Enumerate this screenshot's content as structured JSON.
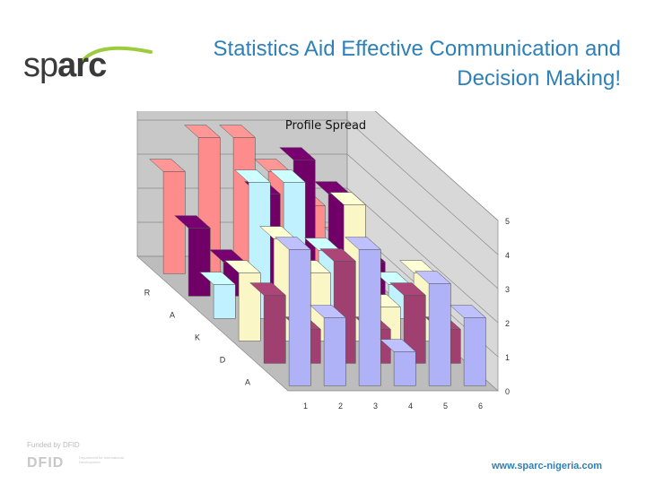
{
  "logo": {
    "part1": "sp",
    "part2": "arc"
  },
  "headline": {
    "line1": "Statistics Aid Effective Communication and",
    "line2": "Decision Making!"
  },
  "chart_data": {
    "type": "bar",
    "title": "Profile Spread",
    "xlabel": "",
    "ylabel": "",
    "categories": [
      "1",
      "2",
      "3",
      "4",
      "5",
      "6"
    ],
    "ylim": [
      0,
      5
    ],
    "yticks": [
      "0",
      "1",
      "2",
      "3",
      "4",
      "5"
    ],
    "grid": true,
    "legend": "none",
    "series": [
      {
        "label": "A",
        "color": "#b0b2f8",
        "values": [
          4,
          2,
          4,
          1,
          3,
          2
        ]
      },
      {
        "label": "D",
        "color": "#a04070",
        "values": [
          2,
          1,
          3,
          1,
          2,
          1
        ]
      },
      {
        "label": "K",
        "color": "#fbf6c6",
        "values": [
          2,
          3,
          2,
          4,
          1,
          2
        ]
      },
      {
        "label": "A",
        "color": "#bff1ff",
        "values": [
          1,
          4,
          4,
          2,
          1,
          1
        ]
      },
      {
        "label": "R",
        "color": "#700068",
        "values": [
          2,
          1,
          3,
          4,
          3,
          1
        ]
      },
      {
        "label": "",
        "color": "#ff8c8c",
        "values": [
          3,
          4,
          4,
          3,
          2,
          1
        ]
      }
    ]
  },
  "footer": {
    "funded_by": "Funded by DFID",
    "dfid": "DFID",
    "dfid_sub": "Department for International Development",
    "url": "www.sparc-nigeria.com"
  }
}
